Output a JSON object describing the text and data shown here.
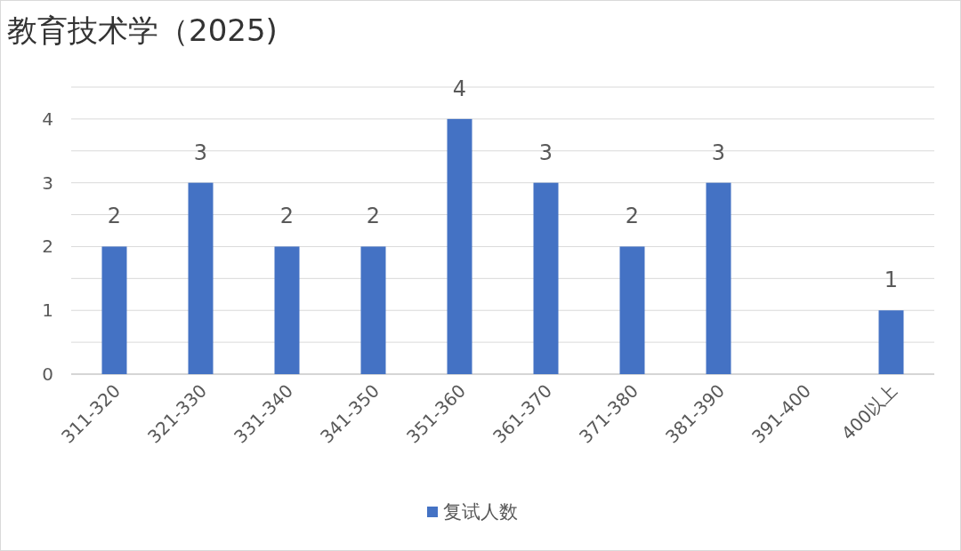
{
  "chart_data": {
    "type": "bar",
    "title": "教育技术学（2025)",
    "categories": [
      "311-320",
      "321-330",
      "331-340",
      "341-350",
      "351-360",
      "361-370",
      "371-380",
      "381-390",
      "391-400",
      "400以上"
    ],
    "series": [
      {
        "name": "复试人数",
        "color": "#4472c4",
        "values": [
          2,
          3,
          2,
          2,
          4,
          3,
          2,
          3,
          null,
          1
        ]
      }
    ],
    "ylim": [
      0,
      4.5
    ],
    "yticks": [
      0,
      {
        "value": 0.5,
        "label": null
      },
      1,
      {
        "value": 1.5,
        "label": null
      },
      2,
      {
        "value": 2.5,
        "label": null
      },
      3,
      {
        "value": 3.5,
        "label": null
      },
      4,
      {
        "value": 4.5,
        "label": null
      }
    ],
    "grid": "y",
    "legend": "bottom",
    "data_labels": true
  }
}
